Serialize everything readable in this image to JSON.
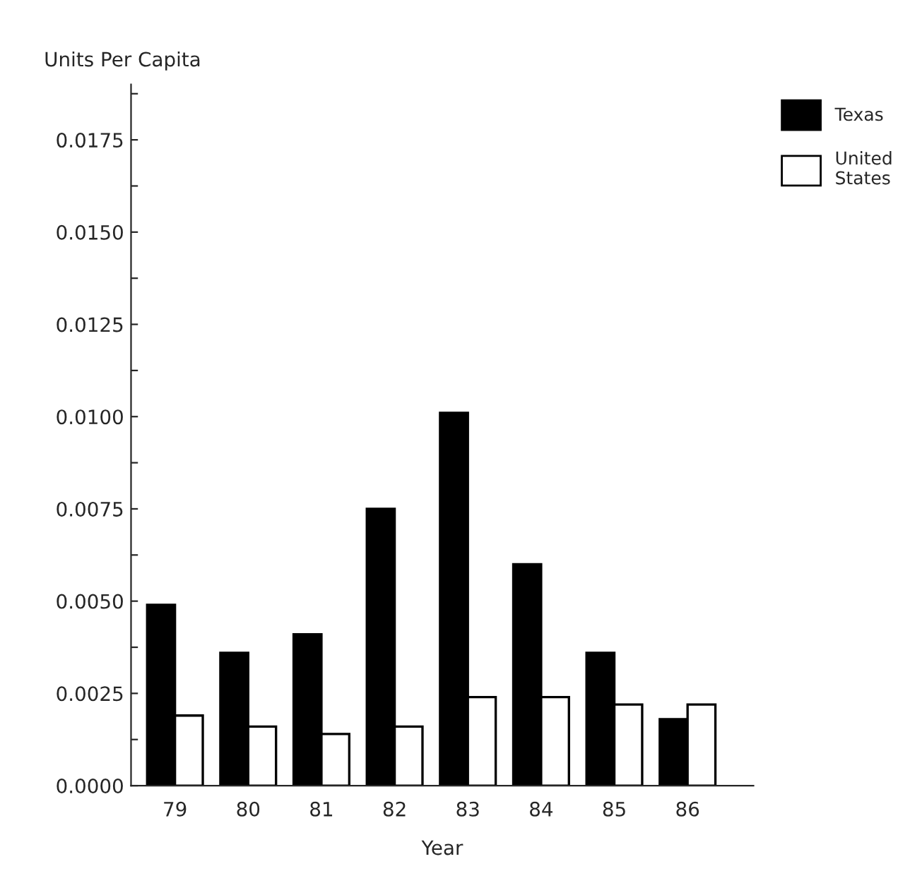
{
  "chart_data": {
    "type": "bar",
    "xlabel": "Year",
    "ylabel": "Units Per Capita",
    "categories": [
      "79",
      "80",
      "81",
      "82",
      "83",
      "84",
      "85",
      "86"
    ],
    "series": [
      {
        "name": "Texas",
        "color": "#000000",
        "values": [
          0.0049,
          0.0036,
          0.0041,
          0.0075,
          0.0101,
          0.006,
          0.0036,
          0.0018
        ]
      },
      {
        "name": "United\nStates",
        "color": "#ffffff",
        "values": [
          0.0019,
          0.0016,
          0.0014,
          0.0016,
          0.0024,
          0.0024,
          0.0022,
          0.0022
        ]
      }
    ],
    "ylim": [
      0,
      0.019
    ],
    "yticks": [
      {
        "value": 0,
        "label": "0.0000"
      },
      {
        "value": 0.00125,
        "label": null
      },
      {
        "value": 0.0025,
        "label": "0.0025"
      },
      {
        "value": 0.00375,
        "label": null
      },
      {
        "value": 0.005,
        "label": "0.0050"
      },
      {
        "value": 0.00625,
        "label": null
      },
      {
        "value": 0.0075,
        "label": "0.0075"
      },
      {
        "value": 0.00875,
        "label": null
      },
      {
        "value": 0.01,
        "label": "0.0100"
      },
      {
        "value": 0.01125,
        "label": null
      },
      {
        "value": 0.0125,
        "label": "0.0125"
      },
      {
        "value": 0.01375,
        "label": null
      },
      {
        "value": 0.015,
        "label": "0.0150"
      },
      {
        "value": 0.01625,
        "label": null
      },
      {
        "value": 0.0175,
        "label": "0.0175"
      },
      {
        "value": 0.01875,
        "label": null
      }
    ],
    "grid": false,
    "legend": "top right"
  }
}
